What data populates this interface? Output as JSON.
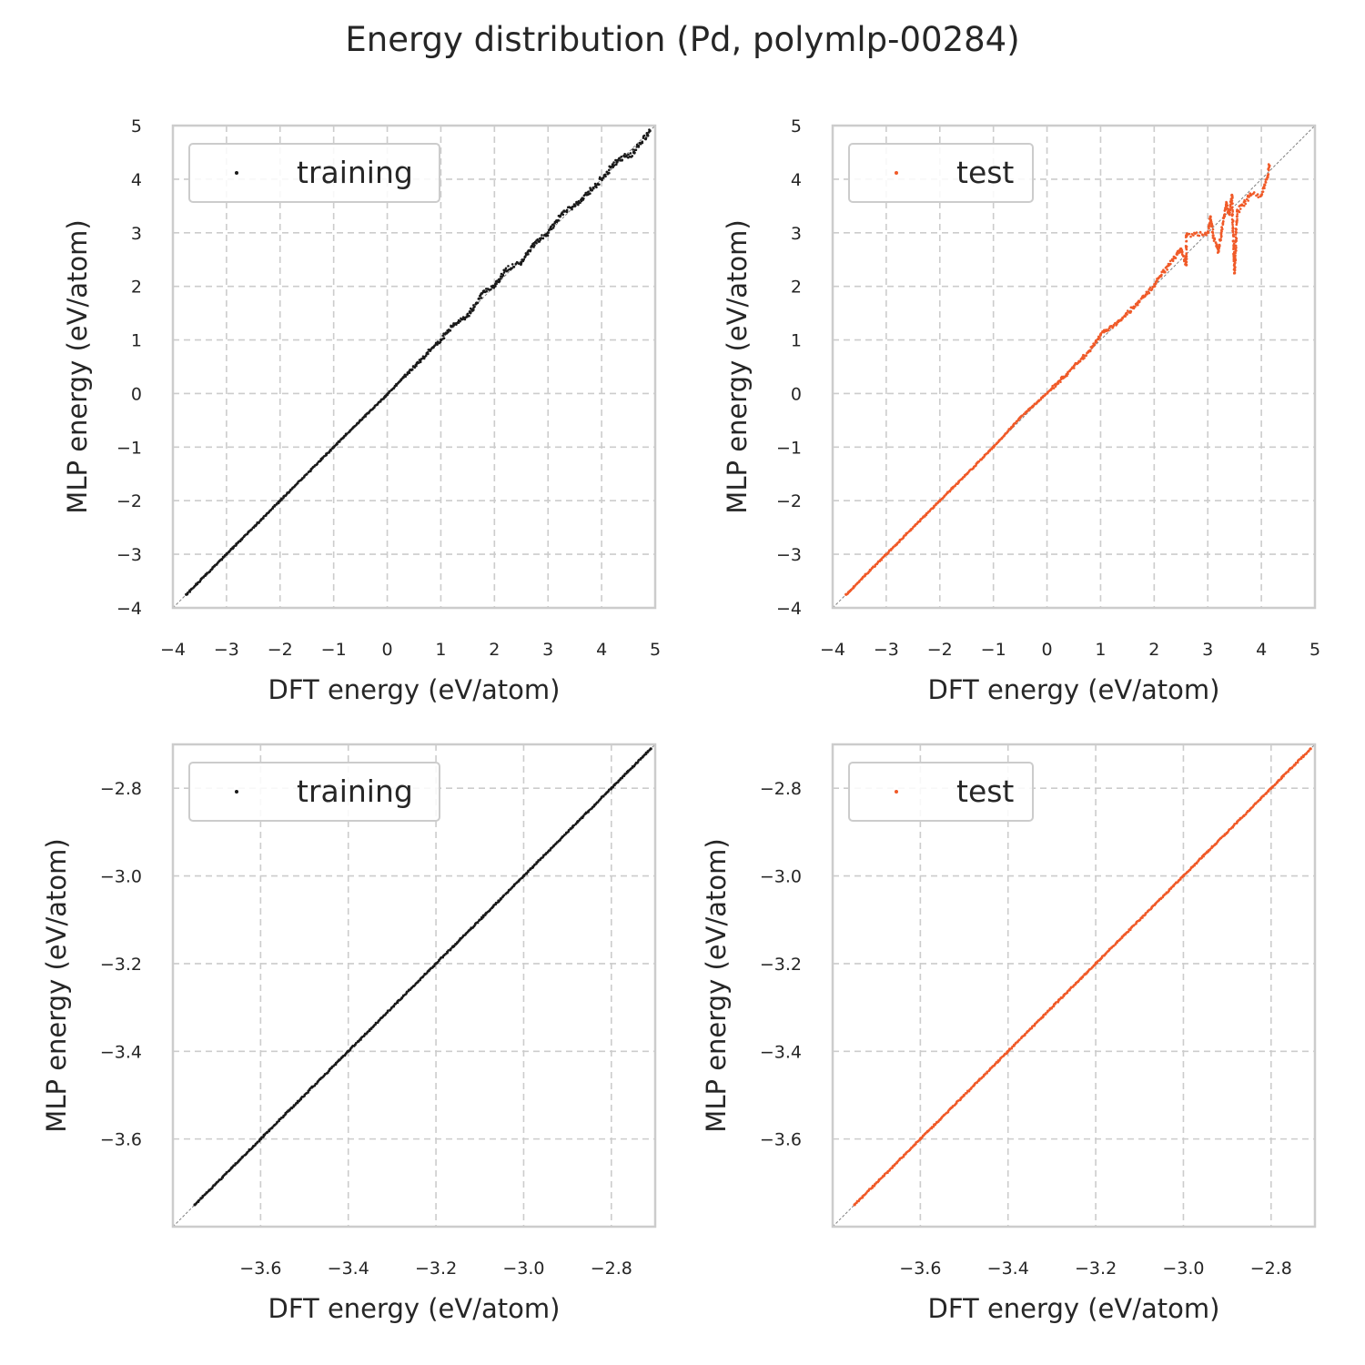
{
  "title": "Energy distribution (Pd, polymlp-00284)",
  "colors": {
    "training": "#1a1a1a",
    "test": "#f05a28",
    "grid": "#cccccc",
    "frame": "#cccccc",
    "diagonal": "#808080"
  },
  "chart_data": [
    {
      "type": "scatter",
      "xlabel": "DFT energy (eV/atom)",
      "ylabel": "MLP energy (eV/atom)",
      "xlim": [
        -4,
        5
      ],
      "ylim": [
        -4,
        5
      ],
      "xticks": [
        "−4",
        "−3",
        "−2",
        "−1",
        "0",
        "1",
        "2",
        "3",
        "4",
        "5"
      ],
      "yticks": [
        "−4",
        "−3",
        "−2",
        "−1",
        "0",
        "1",
        "2",
        "3",
        "4",
        "5"
      ],
      "grid": true,
      "legend": "upper-left",
      "series": [
        {
          "name": "training",
          "color": "#1a1a1a",
          "points": [
            [
              -3.75,
              -3.75
            ],
            [
              -3.0,
              -3.0
            ],
            [
              -2.0,
              -2.0
            ],
            [
              -1.0,
              -1.0
            ],
            [
              -0.5,
              -0.5
            ],
            [
              0.0,
              -0.02
            ],
            [
              0.3,
              0.3
            ],
            [
              0.5,
              0.5
            ],
            [
              0.8,
              0.8
            ],
            [
              1.0,
              1.0
            ],
            [
              1.2,
              1.25
            ],
            [
              1.5,
              1.45
            ],
            [
              1.8,
              1.9
            ],
            [
              2.0,
              2.0
            ],
            [
              2.2,
              2.3
            ],
            [
              2.5,
              2.45
            ],
            [
              2.7,
              2.75
            ],
            [
              3.0,
              3.0
            ],
            [
              3.3,
              3.4
            ],
            [
              3.5,
              3.5
            ],
            [
              3.8,
              3.8
            ],
            [
              4.0,
              4.0
            ],
            [
              4.3,
              4.35
            ],
            [
              4.6,
              4.5
            ],
            [
              4.9,
              4.9
            ]
          ]
        }
      ]
    },
    {
      "type": "scatter",
      "xlabel": "DFT energy (eV/atom)",
      "ylabel": "MLP energy (eV/atom)",
      "xlim": [
        -4,
        5
      ],
      "ylim": [
        -4,
        5
      ],
      "xticks": [
        "−4",
        "−3",
        "−2",
        "−1",
        "0",
        "1",
        "2",
        "3",
        "4",
        "5"
      ],
      "yticks": [
        "−4",
        "−3",
        "−2",
        "−1",
        "0",
        "1",
        "2",
        "3",
        "4",
        "5"
      ],
      "grid": true,
      "legend": "upper-left",
      "series": [
        {
          "name": "test",
          "color": "#f05a28",
          "points": [
            [
              -3.75,
              -3.75
            ],
            [
              -3.0,
              -3.0
            ],
            [
              -2.0,
              -2.0
            ],
            [
              -1.0,
              -1.0
            ],
            [
              -0.5,
              -0.45
            ],
            [
              0.1,
              0.1
            ],
            [
              0.2,
              0.2
            ],
            [
              0.6,
              0.6
            ],
            [
              0.8,
              0.8
            ],
            [
              1.0,
              1.1
            ],
            [
              1.3,
              1.3
            ],
            [
              1.6,
              1.6
            ],
            [
              1.7,
              1.7
            ],
            [
              2.0,
              2.0
            ],
            [
              2.05,
              2.1
            ],
            [
              2.5,
              2.7
            ],
            [
              2.6,
              2.4
            ],
            [
              2.6,
              2.95
            ],
            [
              3.0,
              3.0
            ],
            [
              3.05,
              3.3
            ],
            [
              3.1,
              2.95
            ],
            [
              3.2,
              2.65
            ],
            [
              3.35,
              3.55
            ],
            [
              3.4,
              3.35
            ],
            [
              3.45,
              3.7
            ],
            [
              3.5,
              2.25
            ],
            [
              3.55,
              3.4
            ],
            [
              3.8,
              3.7
            ],
            [
              4.0,
              3.7
            ],
            [
              4.1,
              4.0
            ],
            [
              4.15,
              4.25
            ]
          ]
        }
      ]
    },
    {
      "type": "scatter",
      "xlabel": "DFT energy (eV/atom)",
      "ylabel": "MLP energy (eV/atom)",
      "xlim": [
        -3.8,
        -2.7
      ],
      "ylim": [
        -3.8,
        -2.7
      ],
      "xticks": [
        "−3.6",
        "−3.4",
        "−3.2",
        "−3.0",
        "−2.8"
      ],
      "yticks": [
        "−3.6",
        "−3.4",
        "−3.2",
        "−3.0",
        "−2.8"
      ],
      "grid": true,
      "legend": "upper-left",
      "series": [
        {
          "name": "training",
          "color": "#1a1a1a",
          "points": [
            [
              -3.75,
              -3.75
            ],
            [
              -3.6,
              -3.6
            ],
            [
              -3.4,
              -3.4
            ],
            [
              -3.2,
              -3.2
            ],
            [
              -3.0,
              -3.0
            ],
            [
              -2.8,
              -2.8
            ],
            [
              -2.71,
              -2.71
            ]
          ]
        }
      ]
    },
    {
      "type": "scatter",
      "xlabel": "DFT energy (eV/atom)",
      "ylabel": "MLP energy (eV/atom)",
      "xlim": [
        -3.8,
        -2.7
      ],
      "ylim": [
        -3.8,
        -2.7
      ],
      "xticks": [
        "−3.6",
        "−3.4",
        "−3.2",
        "−3.0",
        "−2.8"
      ],
      "yticks": [
        "−3.6",
        "−3.4",
        "−3.2",
        "−3.0",
        "−2.8"
      ],
      "grid": true,
      "legend": "upper-left",
      "series": [
        {
          "name": "test",
          "color": "#f05a28",
          "points": [
            [
              -3.75,
              -3.75
            ],
            [
              -3.6,
              -3.6
            ],
            [
              -3.4,
              -3.4
            ],
            [
              -3.2,
              -3.2
            ],
            [
              -3.0,
              -3.0
            ],
            [
              -2.8,
              -2.8
            ],
            [
              -2.71,
              -2.71
            ]
          ]
        }
      ]
    }
  ]
}
